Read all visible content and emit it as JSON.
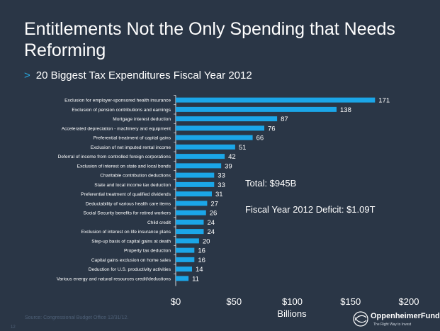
{
  "slide": {
    "title": "Entitlements Not the Only Spending that Needs Reforming",
    "subtitle": "20 Biggest Tax Expenditures Fiscal Year 2012",
    "bullet": ">",
    "source": "Source: Congressional Budget Office 12/31/12.",
    "page_number": "12",
    "logo_name": "OppenheimerFunds",
    "logo_mark": "®",
    "logo_tagline": "The Right Way to Invest"
  },
  "colors": {
    "background": "#2a3646",
    "bar": "#1ba6e8",
    "accent": "#29abe2",
    "text": "#ffffff"
  },
  "chart_data": {
    "type": "bar",
    "orientation": "horizontal",
    "categories": [
      "Exclusion for employer-sponsored health insurance",
      "Exclusion of pension contributions and earnings",
      "Mortgage interest deduction",
      "Accelerated depreciation - machinery and equipment",
      "Preferential treatment of capital gains",
      "Exclusion of net imputed rental income",
      "Deferral of income from controlled foreign corporations",
      "Exclusion of interest on state and local bonds",
      "Charitable contribution deductions",
      "State and local income tax deduction",
      "Preferential treatment of qualified dividends",
      "Deductability of various health care items",
      "Social Security benefits for retired workers",
      "Child credit",
      "Exclusion of interest on life insurance plans",
      "Step-up basis of capital gains at death",
      "Property tax deduction",
      "Capital gains exclusion on home sales",
      "Deduction for U.S. productivity activities",
      "Various energy and natural resources credit/deductions"
    ],
    "values": [
      171,
      138,
      87,
      76,
      66,
      51,
      42,
      39,
      33,
      33,
      31,
      27,
      26,
      24,
      24,
      20,
      16,
      16,
      14,
      11
    ],
    "data_labels": [
      "171",
      "138",
      "87",
      "76",
      "66",
      "51",
      "42",
      "39",
      "33",
      "33",
      "31",
      "27",
      "26",
      "24",
      "24",
      "20",
      "16",
      "16",
      "14",
      "11"
    ],
    "xlabel": "Billions",
    "xlim": [
      0,
      200
    ],
    "xticks": [
      "$0",
      "$50",
      "$100",
      "$150",
      "$200"
    ],
    "grid": false,
    "annotations": [
      "Total: $945B",
      "Fiscal Year 2012 Deficit: $1.09T"
    ]
  }
}
